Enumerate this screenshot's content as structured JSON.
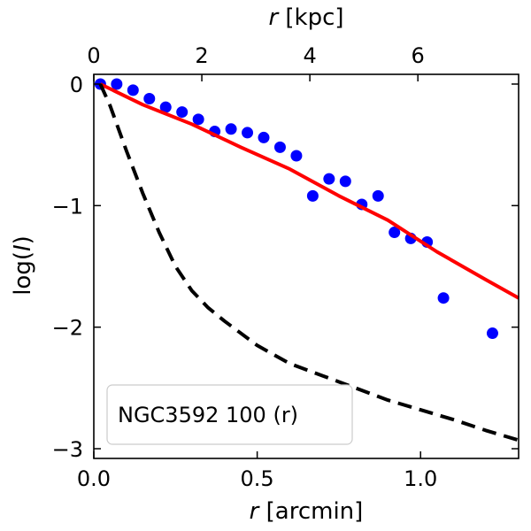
{
  "chart_data": {
    "type": "line",
    "title": "",
    "xlabel": {
      "var": "r",
      "unit": "[arcmin]"
    },
    "ylabel": {
      "prefix": "log(",
      "var": "I",
      "suffix": ")"
    },
    "x2label": {
      "var": "r",
      "unit": "[kpc]"
    },
    "xlim": [
      0.0,
      1.3
    ],
    "ylim": [
      -3.08,
      0.08
    ],
    "x_ticks": [
      {
        "value": 0.0,
        "label": "0.0"
      },
      {
        "value": 0.5,
        "label": "0.5"
      },
      {
        "value": 1.0,
        "label": "1.0"
      }
    ],
    "y_ticks": [
      {
        "value": 0,
        "label": "0"
      },
      {
        "value": -1,
        "label": "−1"
      },
      {
        "value": -2,
        "label": "−2"
      },
      {
        "value": -3,
        "label": "−3"
      }
    ],
    "x2_ticks": [
      {
        "value": 0,
        "label": "0"
      },
      {
        "value": 2,
        "label": "2"
      },
      {
        "value": 4,
        "label": "4"
      },
      {
        "value": 6,
        "label": "6"
      }
    ],
    "kpc_per_arcmin": 6.05,
    "legend": {
      "text": "NGC3592 100 (r)",
      "position": "lower-left"
    },
    "series": [
      {
        "name": "data",
        "style": "scatter",
        "color": "#0000ff",
        "x": [
          0.02,
          0.07,
          0.12,
          0.17,
          0.22,
          0.27,
          0.32,
          0.37,
          0.42,
          0.47,
          0.52,
          0.57,
          0.62,
          0.67,
          0.72,
          0.77,
          0.82,
          0.87,
          0.92,
          0.97,
          1.02,
          1.07,
          1.22
        ],
        "y": [
          0.0,
          0.0,
          -0.05,
          -0.12,
          -0.19,
          -0.23,
          -0.29,
          -0.39,
          -0.37,
          -0.4,
          -0.44,
          -0.52,
          -0.59,
          -0.92,
          -0.78,
          -0.8,
          -0.99,
          -0.92,
          -1.22,
          -1.27,
          -1.3,
          -1.76,
          -2.05
        ]
      },
      {
        "name": "model",
        "style": "solid",
        "color": "#ff0000",
        "x": [
          0.02,
          0.15,
          0.3,
          0.45,
          0.6,
          0.75,
          0.9,
          1.05,
          1.2,
          1.3
        ],
        "y": [
          0.0,
          -0.17,
          -0.33,
          -0.52,
          -0.7,
          -0.92,
          -1.12,
          -1.38,
          -1.61,
          -1.76
        ]
      },
      {
        "name": "psf",
        "style": "dashed",
        "color": "#000000",
        "x": [
          0.02,
          0.05,
          0.1,
          0.15,
          0.2,
          0.25,
          0.3,
          0.35,
          0.4,
          0.5,
          0.6,
          0.7,
          0.8,
          0.9,
          1.0,
          1.1,
          1.2,
          1.3
        ],
        "y": [
          0.0,
          -0.18,
          -0.55,
          -0.9,
          -1.22,
          -1.5,
          -1.7,
          -1.84,
          -1.95,
          -2.15,
          -2.3,
          -2.4,
          -2.5,
          -2.6,
          -2.68,
          -2.76,
          -2.85,
          -2.93
        ]
      }
    ]
  }
}
